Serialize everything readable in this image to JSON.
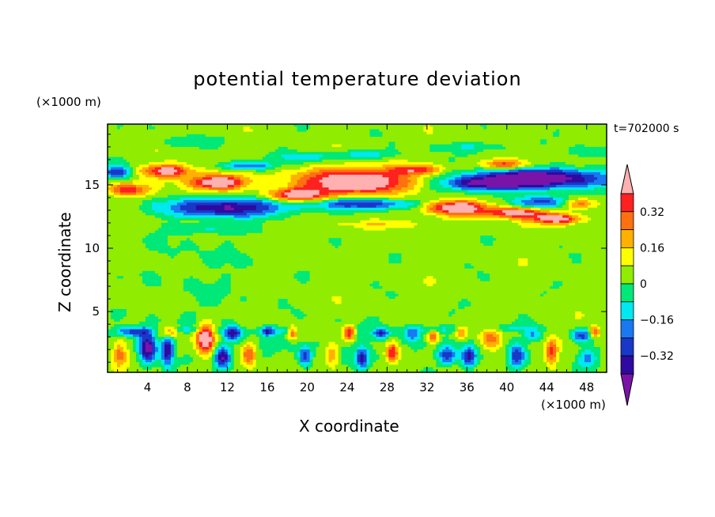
{
  "chart_data": {
    "type": "heatmap",
    "title": "potential temperature deviation",
    "xlabel": "X coordinate",
    "ylabel": "Z coordinate",
    "x_scale_label": "(×1000 m)",
    "z_scale_label": "(×1000 m)",
    "time_label": "t=702000 s",
    "xlim": [
      0,
      50
    ],
    "zlim": [
      0.2,
      19.8
    ],
    "x_ticks": [
      4,
      8,
      12,
      16,
      20,
      24,
      28,
      32,
      36,
      40,
      44,
      48
    ],
    "z_ticks": [
      5,
      10,
      15
    ],
    "colorbar": {
      "levels": [
        -0.4,
        -0.32,
        -0.24,
        -0.16,
        -0.08,
        0,
        0.08,
        0.16,
        0.24,
        0.32,
        0.4
      ],
      "tick_labels": [
        "0.32",
        "0.16",
        "0",
        "−0.16",
        "−0.32"
      ],
      "colors": [
        "#7a14a8",
        "#2f0aa0",
        "#1838c8",
        "#1a78f0",
        "#00e8f0",
        "#00e878",
        "#90ec00",
        "#ffff00",
        "#ffb000",
        "#ff7010",
        "#ff2020",
        "#ffb0b0"
      ]
    },
    "features": [
      {
        "name": "upper-positive-band",
        "x": [
          0,
          50
        ],
        "z": [
          13,
          17
        ],
        "value": 0.4
      },
      {
        "name": "upper-negative-band",
        "x": [
          0,
          50
        ],
        "z": [
          13,
          17
        ],
        "value": -0.4
      },
      {
        "name": "low-level-cells",
        "x": [
          0,
          50
        ],
        "z": [
          0.2,
          4
        ],
        "value": 0.4
      },
      {
        "name": "mid-level-field",
        "x": [
          0,
          50
        ],
        "z": [
          4,
          12
        ],
        "value": 0.04
      }
    ]
  }
}
